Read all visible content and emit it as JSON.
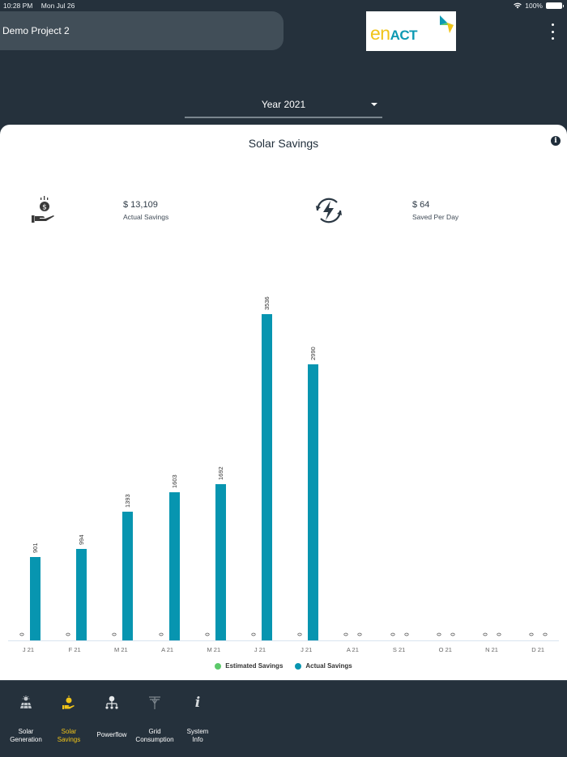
{
  "status_bar": {
    "time": "10:28 PM",
    "date": "Mon Jul 26",
    "battery": "100%"
  },
  "header": {
    "project_name": "Demo Project 2",
    "logo_en": "en",
    "logo_act": "ACT"
  },
  "year_selector": {
    "value": "Year 2021"
  },
  "card": {
    "title": "Solar Savings",
    "stats": [
      {
        "icon": "money-hand-icon",
        "value": "$ 13,109",
        "label": "Actual Savings"
      },
      {
        "icon": "energy-cycle-icon",
        "value": "$ 64",
        "label": "Saved Per Day"
      }
    ]
  },
  "colors": {
    "estimated": "#5cc96a",
    "actual": "#0795b0",
    "background": "#25313c",
    "active_nav": "#f0c419"
  },
  "chart_data": {
    "type": "bar",
    "title": "Solar Savings",
    "categories": [
      "J 21",
      "F 21",
      "M 21",
      "A 21",
      "M 21",
      "J 21",
      "J 21",
      "A 21",
      "S 21",
      "O 21",
      "N 21",
      "D 21"
    ],
    "series": [
      {
        "name": "Estimated Savings",
        "color": "#5cc96a",
        "values": [
          0,
          0,
          0,
          0,
          0,
          0,
          0,
          0,
          0,
          0,
          0,
          0
        ]
      },
      {
        "name": "Actual Savings",
        "color": "#0795b0",
        "values": [
          901,
          994,
          1393,
          1603,
          1692,
          3536,
          2990,
          0,
          0,
          0,
          0,
          0
        ]
      }
    ],
    "xlabel": "",
    "ylabel": "",
    "ylim": [
      0,
      3536
    ],
    "grid": false,
    "legend_position": "bottom",
    "data_labels": true
  },
  "legend": [
    {
      "label": "Estimated Savings",
      "color": "#5cc96a"
    },
    {
      "label": "Actual Savings",
      "color": "#0795b0"
    }
  ],
  "bottom_nav": [
    {
      "label_1": "Solar",
      "label_2": "Generation",
      "icon": "solar-panel-icon",
      "active": false
    },
    {
      "label_1": "Solar",
      "label_2": "Savings",
      "icon": "money-hand-icon",
      "active": true
    },
    {
      "label_1": "Powerflow",
      "label_2": "",
      "icon": "powerflow-icon",
      "active": false
    },
    {
      "label_1": "Grid",
      "label_2": "Consumption",
      "icon": "grid-tower-icon",
      "active": false
    },
    {
      "label_1": "System",
      "label_2": "Info",
      "icon": "info-icon",
      "active": false
    }
  ]
}
